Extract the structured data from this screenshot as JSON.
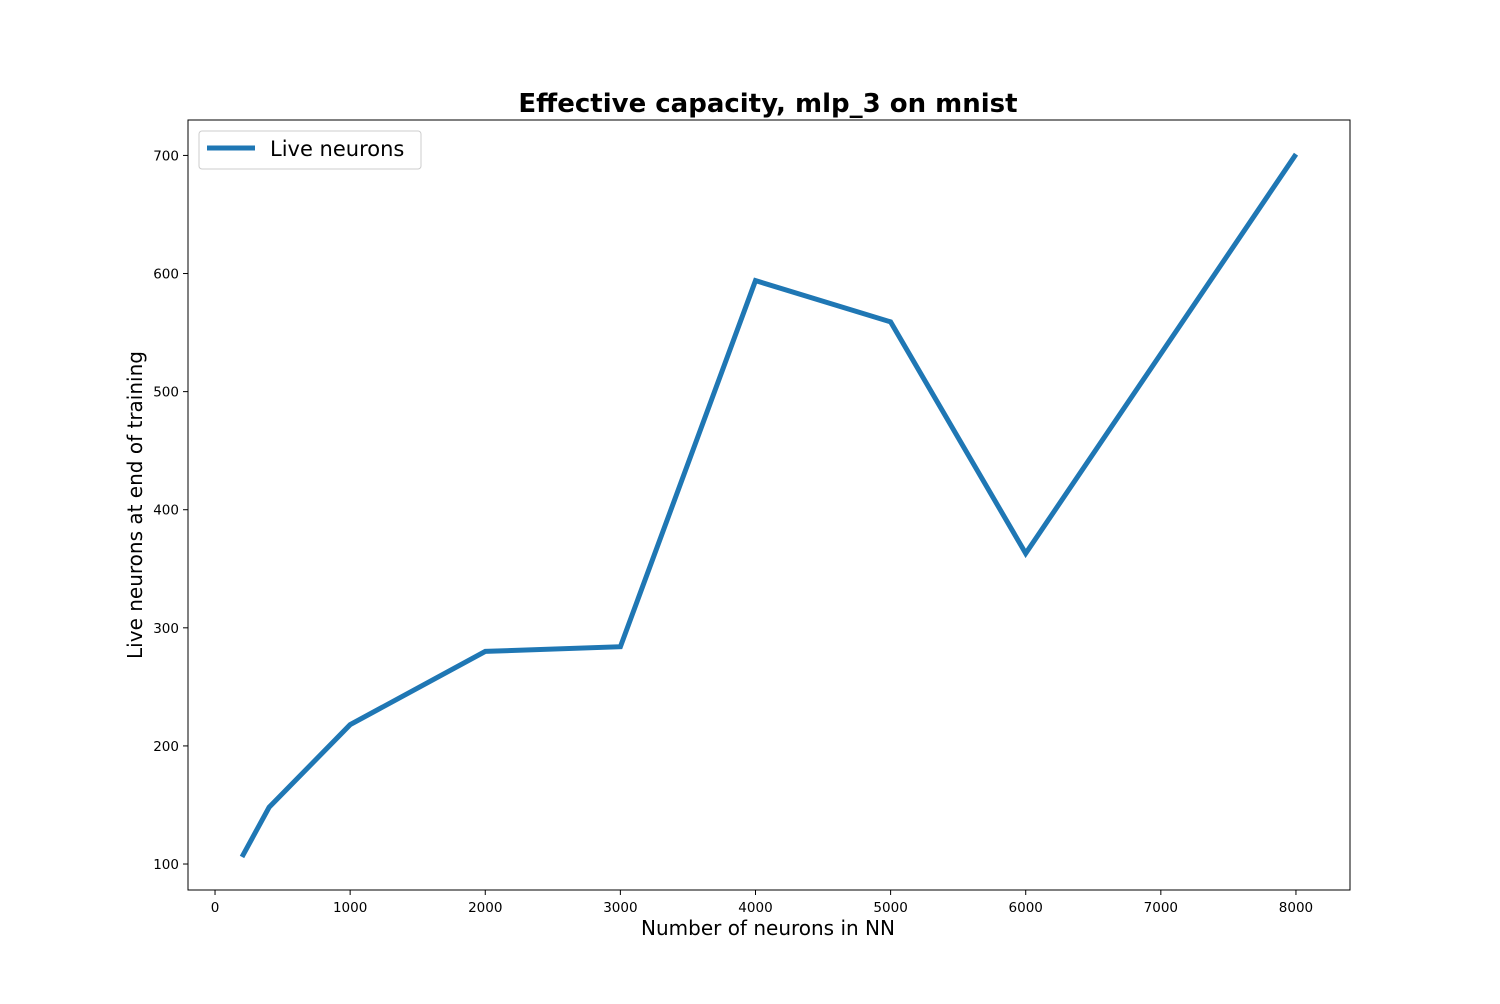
{
  "chart_data": {
    "type": "line",
    "title": "Effective capacity, mlp_3 on mnist",
    "xlabel": "Number of neurons in NN",
    "ylabel": "Live neurons at end of training",
    "xlim": [
      -200,
      8400
    ],
    "ylim": [
      78,
      730
    ],
    "x_ticks": [
      0,
      1000,
      2000,
      3000,
      4000,
      5000,
      6000,
      7000,
      8000
    ],
    "y_ticks": [
      100,
      200,
      300,
      400,
      500,
      600,
      700
    ],
    "grid": false,
    "legend_position": "top-left",
    "series": [
      {
        "name": "Live neurons",
        "color": "#1f77b4",
        "x": [
          200,
          400,
          1000,
          2000,
          3000,
          4000,
          5000,
          6000,
          8000
        ],
        "y": [
          106,
          148,
          218,
          280,
          284,
          594,
          559,
          363,
          701
        ]
      }
    ]
  }
}
